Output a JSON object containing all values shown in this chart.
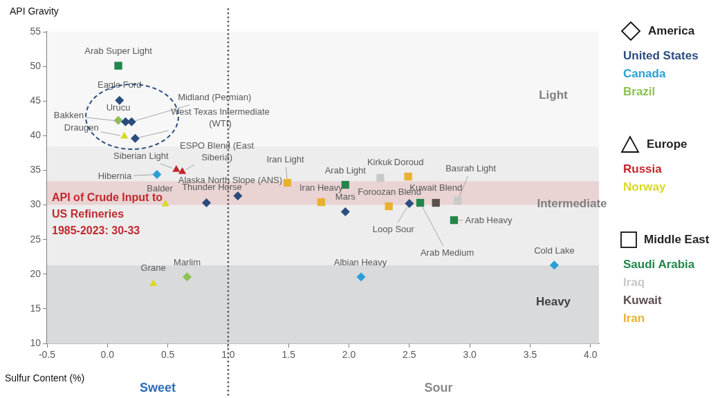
{
  "chart_data": {
    "type": "scatter",
    "ylabel": "API Gravity",
    "xlabel": "Sulfur Content (%)",
    "legend": "right",
    "grid": false,
    "xlim": [
      -0.5,
      4.07
    ],
    "xticks": [
      -0.5,
      {
        "value": 0,
        "label": "0.0"
      },
      0.5,
      {
        "value": 1,
        "label": "1.0"
      },
      1.5,
      {
        "value": 2,
        "label": "2.0"
      },
      2.5,
      {
        "value": 3,
        "label": "3.0"
      },
      3.5,
      {
        "value": 4,
        "label": "4.0"
      }
    ],
    "ylim": [
      10,
      55
    ],
    "yticks": [
      10,
      15,
      20,
      25,
      30,
      35,
      40,
      45,
      50,
      55
    ],
    "series": [
      {
        "name": "United States",
        "color": "#2b4c7e",
        "marker": "diamond",
        "x": [
          0.1,
          0.15,
          0.2,
          0.23,
          0.82,
          1.08,
          1.97,
          2.5
        ],
        "values": [
          45.1,
          42.0,
          42.0,
          39.6,
          30.3,
          31.3,
          29.0,
          30.2
        ]
      },
      {
        "name": "Canada",
        "color": "#2a9fd6",
        "marker": "diamond",
        "x": [
          0.41,
          2.1,
          3.7
        ],
        "values": [
          34.4,
          19.6,
          21.3
        ]
      },
      {
        "name": "Brazil",
        "color": "#8cc152",
        "marker": "diamond",
        "x": [
          0.09,
          0.66
        ],
        "values": [
          42.2,
          19.6
        ]
      },
      {
        "name": "Russia",
        "color": "#c1272d",
        "marker": "triangle",
        "x": [
          0.57,
          0.62
        ],
        "values": [
          35.1,
          34.8
        ]
      },
      {
        "name": "Norway",
        "color": "#d8d827",
        "marker": "triangle",
        "x": [
          0.14,
          0.48,
          0.38
        ],
        "values": [
          39.9,
          30.1,
          18.6
        ]
      },
      {
        "name": "Saudi Arabia",
        "color": "#22864a",
        "marker": "square",
        "x": [
          0.09,
          1.97,
          2.59,
          2.87
        ],
        "values": [
          50.1,
          32.9,
          30.3,
          27.8
        ]
      },
      {
        "name": "Iraq",
        "color": "#c9c9c9",
        "marker": "square",
        "x": [
          2.26,
          2.9
        ],
        "values": [
          33.9,
          30.6
        ]
      },
      {
        "name": "Kuwait",
        "color": "#5b4f4f",
        "marker": "square",
        "x": [
          2.72
        ],
        "values": [
          30.3
        ]
      },
      {
        "name": "Iran",
        "color": "#e9b131",
        "marker": "square",
        "x": [
          1.49,
          1.77,
          2.33,
          2.49
        ],
        "values": [
          33.2,
          30.4,
          29.8,
          34.1
        ]
      }
    ],
    "bands": [
      {
        "axis": "y",
        "from": 38.4,
        "to": 55,
        "label": "Light",
        "color": "#f7f7f7"
      },
      {
        "axis": "y",
        "from": 21.3,
        "to": 38.4,
        "label": "Intermediate",
        "color": "#ededed"
      },
      {
        "axis": "y",
        "from": 10,
        "to": 21.3,
        "label": "Heavy",
        "color": "#d9dadc"
      },
      {
        "axis": "y",
        "from": 30,
        "to": 33.4,
        "label": "API of Crude Input to US Refineries 1985-2023: 30-33",
        "color": "#e9d3d3"
      }
    ],
    "ref_lines": [
      {
        "axis": "x",
        "value": 1.0,
        "line_style": "dotted",
        "color": "#595959"
      }
    ],
    "annotations": [
      "America",
      "Europe",
      "Middle East",
      "Sweet",
      "Sour",
      {
        "text": "Eagle Ford",
        "x": 0.1,
        "y": 45.1
      },
      {
        "text": "Bakken",
        "x": 0.15,
        "y": 42.0
      },
      {
        "text": "Midland (Permian)",
        "x": 0.2,
        "y": 42.0
      },
      {
        "text": "West Texas Intermediate (WTI)",
        "x": 0.23,
        "y": 39.6
      },
      {
        "text": "Thunder Horse",
        "x": 0.82,
        "y": 30.3
      },
      {
        "text": "Alaska North Slope (ANS)",
        "x": 1.08,
        "y": 31.3
      },
      {
        "text": "Mars",
        "x": 1.97,
        "y": 29.0
      },
      {
        "text": "Loop Sour",
        "x": 2.5,
        "y": 30.2
      },
      {
        "text": "Hibernia",
        "x": 0.41,
        "y": 34.4
      },
      {
        "text": "Albian Heavy",
        "x": 2.1,
        "y": 19.6
      },
      {
        "text": "Cold Lake",
        "x": 3.7,
        "y": 21.3
      },
      {
        "text": "Urucu",
        "x": 0.09,
        "y": 42.2
      },
      {
        "text": "Marlim",
        "x": 0.66,
        "y": 19.6
      },
      {
        "text": "Siberian Light",
        "x": 0.57,
        "y": 35.1
      },
      {
        "text": "ESPO Blend (East Siberia)",
        "x": 0.62,
        "y": 34.8
      },
      {
        "text": "Draugen",
        "x": 0.14,
        "y": 39.9
      },
      {
        "text": "Balder",
        "x": 0.48,
        "y": 30.1
      },
      {
        "text": "Grane",
        "x": 0.38,
        "y": 18.6
      },
      {
        "text": "Arab Super Light",
        "x": 0.09,
        "y": 50.1
      },
      {
        "text": "Arab Light",
        "x": 1.97,
        "y": 32.9
      },
      {
        "text": "Arab Medium",
        "x": 2.59,
        "y": 30.3
      },
      {
        "text": "Arab Heavy",
        "x": 2.87,
        "y": 27.8
      },
      {
        "text": "Kirkuk",
        "x": 2.26,
        "y": 33.9
      },
      {
        "text": "Basrah Light",
        "x": 2.9,
        "y": 30.6
      },
      {
        "text": "Kuwait Blend",
        "x": 2.72,
        "y": 30.3
      },
      {
        "text": "Iran Light",
        "x": 1.49,
        "y": 33.2
      },
      {
        "text": "Iran Heavy",
        "x": 1.77,
        "y": 30.4
      },
      {
        "text": "Foroozan Blend",
        "x": 2.33,
        "y": 29.8
      },
      {
        "text": "Doroud",
        "x": 2.49,
        "y": 34.1
      }
    ]
  }
}
